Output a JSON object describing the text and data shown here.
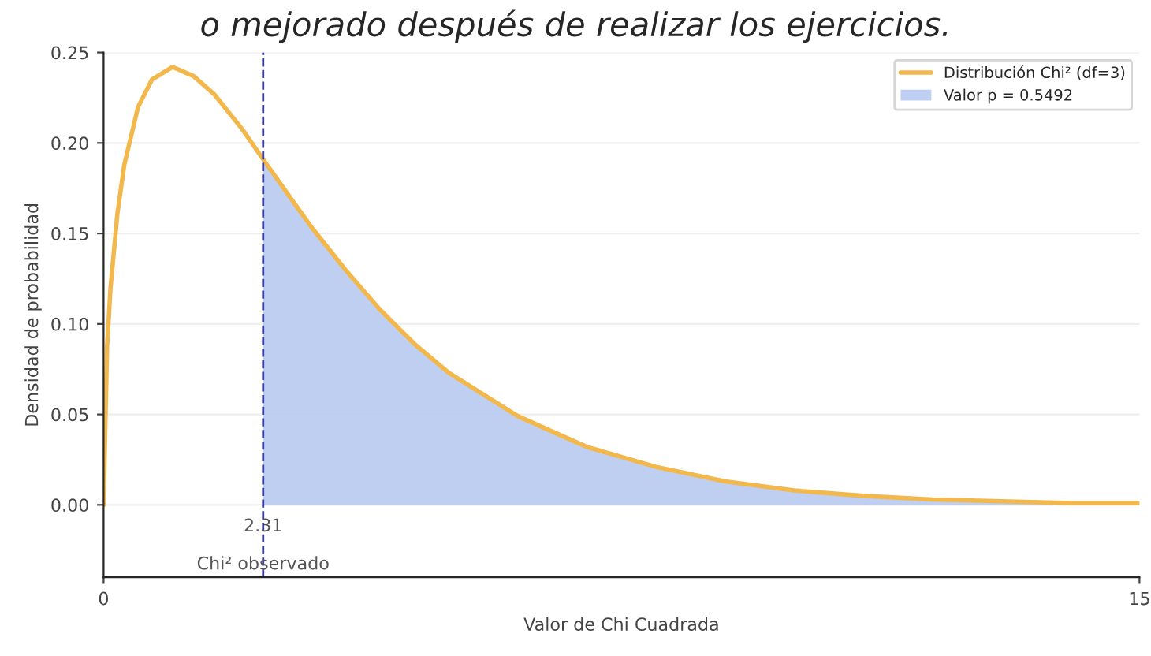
{
  "chart_data": {
    "type": "line",
    "title": "o mejorado después de realizar los ejercicios.",
    "xlabel": "Valor de Chi Cuadrada",
    "ylabel": "Densidad de probabilidad",
    "series": [
      {
        "name": "Distribución Chi² (df=3)",
        "color": "#f2b84b",
        "x": [
          0,
          0.05,
          0.1,
          0.2,
          0.3,
          0.5,
          0.7,
          1,
          1.3,
          1.6,
          2,
          2.31,
          2.7,
          3,
          3.5,
          4,
          4.5,
          5,
          6,
          7,
          8,
          9,
          10,
          11,
          12,
          13,
          14,
          15
        ],
        "values": [
          0,
          0.087,
          0.12,
          0.161,
          0.188,
          0.22,
          0.235,
          0.242,
          0.237,
          0.227,
          0.208,
          0.191,
          0.17,
          0.154,
          0.13,
          0.108,
          0.089,
          0.073,
          0.049,
          0.032,
          0.021,
          0.013,
          0.008,
          0.005,
          0.003,
          0.002,
          0.001,
          0.001
        ]
      },
      {
        "name": "Valor p = 0.5492",
        "type": "area",
        "color": "#b7caf0",
        "x": [
          2.31,
          2.7,
          3,
          3.5,
          4,
          4.5,
          5,
          6,
          7,
          8,
          9,
          10,
          11,
          12,
          13,
          14,
          15
        ],
        "values": [
          0.191,
          0.17,
          0.154,
          0.13,
          0.108,
          0.089,
          0.073,
          0.049,
          0.032,
          0.021,
          0.013,
          0.008,
          0.005,
          0.003,
          0.002,
          0.001,
          0.001
        ]
      }
    ],
    "ref_lines": [
      {
        "axis": "x",
        "value": 2.31,
        "color": "#3a3aa8",
        "line_style": "dashed"
      }
    ],
    "annotations": [
      {
        "text": "2.31",
        "x": 2.31,
        "y": -0.012
      },
      {
        "text": "Chi² observado",
        "x": 2.31,
        "y": -0.033
      }
    ],
    "xlim": [
      0,
      15
    ],
    "xticks": [
      0,
      15
    ],
    "ylim": [
      -0.04,
      0.25
    ],
    "yticks": [
      {
        "value": 0,
        "label": "0.00"
      },
      {
        "value": 0.05,
        "label": "0.05"
      },
      {
        "value": 0.1,
        "label": "0.10"
      },
      {
        "value": 0.15,
        "label": "0.15"
      },
      {
        "value": 0.2,
        "label": "0.20"
      },
      {
        "value": 0.25,
        "label": "0.25"
      }
    ],
    "grid": "y",
    "legend": "top right"
  }
}
